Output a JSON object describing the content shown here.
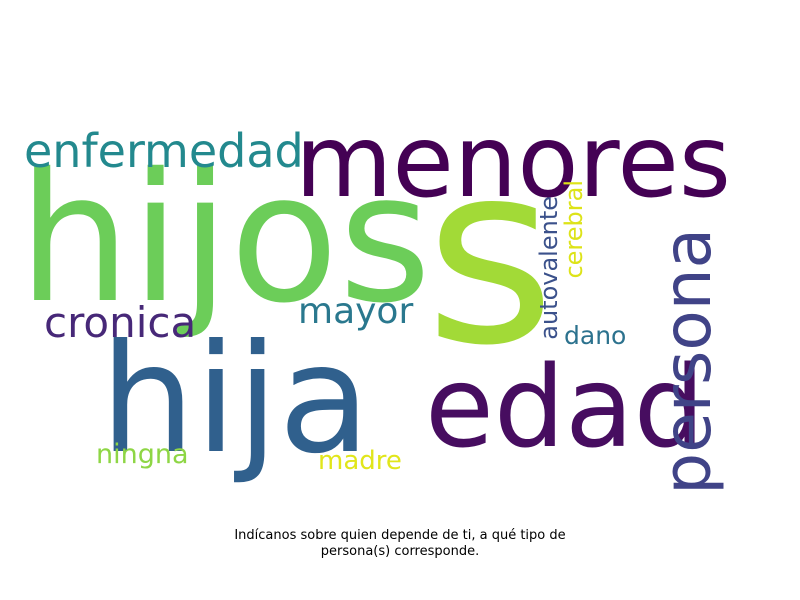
{
  "wordcloud": {
    "words": [
      {
        "text": "hijos",
        "color": "#6ccd59",
        "orientation": "horizontal"
      },
      {
        "text": "s",
        "color": "#a2da37",
        "orientation": "horizontal"
      },
      {
        "text": "menores",
        "color": "#440154",
        "orientation": "horizontal"
      },
      {
        "text": "hija",
        "color": "#30608d",
        "orientation": "horizontal"
      },
      {
        "text": "edad",
        "color": "#470d60",
        "orientation": "horizontal"
      },
      {
        "text": "persona",
        "color": "#404387",
        "orientation": "vertical"
      },
      {
        "text": "enfermedad",
        "color": "#23898e",
        "orientation": "horizontal"
      },
      {
        "text": "cronica",
        "color": "#472878",
        "orientation": "horizontal"
      },
      {
        "text": "mayor",
        "color": "#2a788e",
        "orientation": "horizontal"
      },
      {
        "text": "autovalente",
        "color": "#3b518b",
        "orientation": "vertical"
      },
      {
        "text": "cerebral",
        "color": "#dde318",
        "orientation": "vertical"
      },
      {
        "text": "dano",
        "color": "#2c728e",
        "orientation": "horizontal"
      },
      {
        "text": "ningna",
        "color": "#8ed645",
        "orientation": "horizontal"
      },
      {
        "text": "madre",
        "color": "#e1e61b",
        "orientation": "horizontal"
      }
    ]
  },
  "caption": {
    "line1": "Indícanos sobre quien depende de ti, a qué tipo de",
    "line2": "persona(s) corresponde."
  }
}
